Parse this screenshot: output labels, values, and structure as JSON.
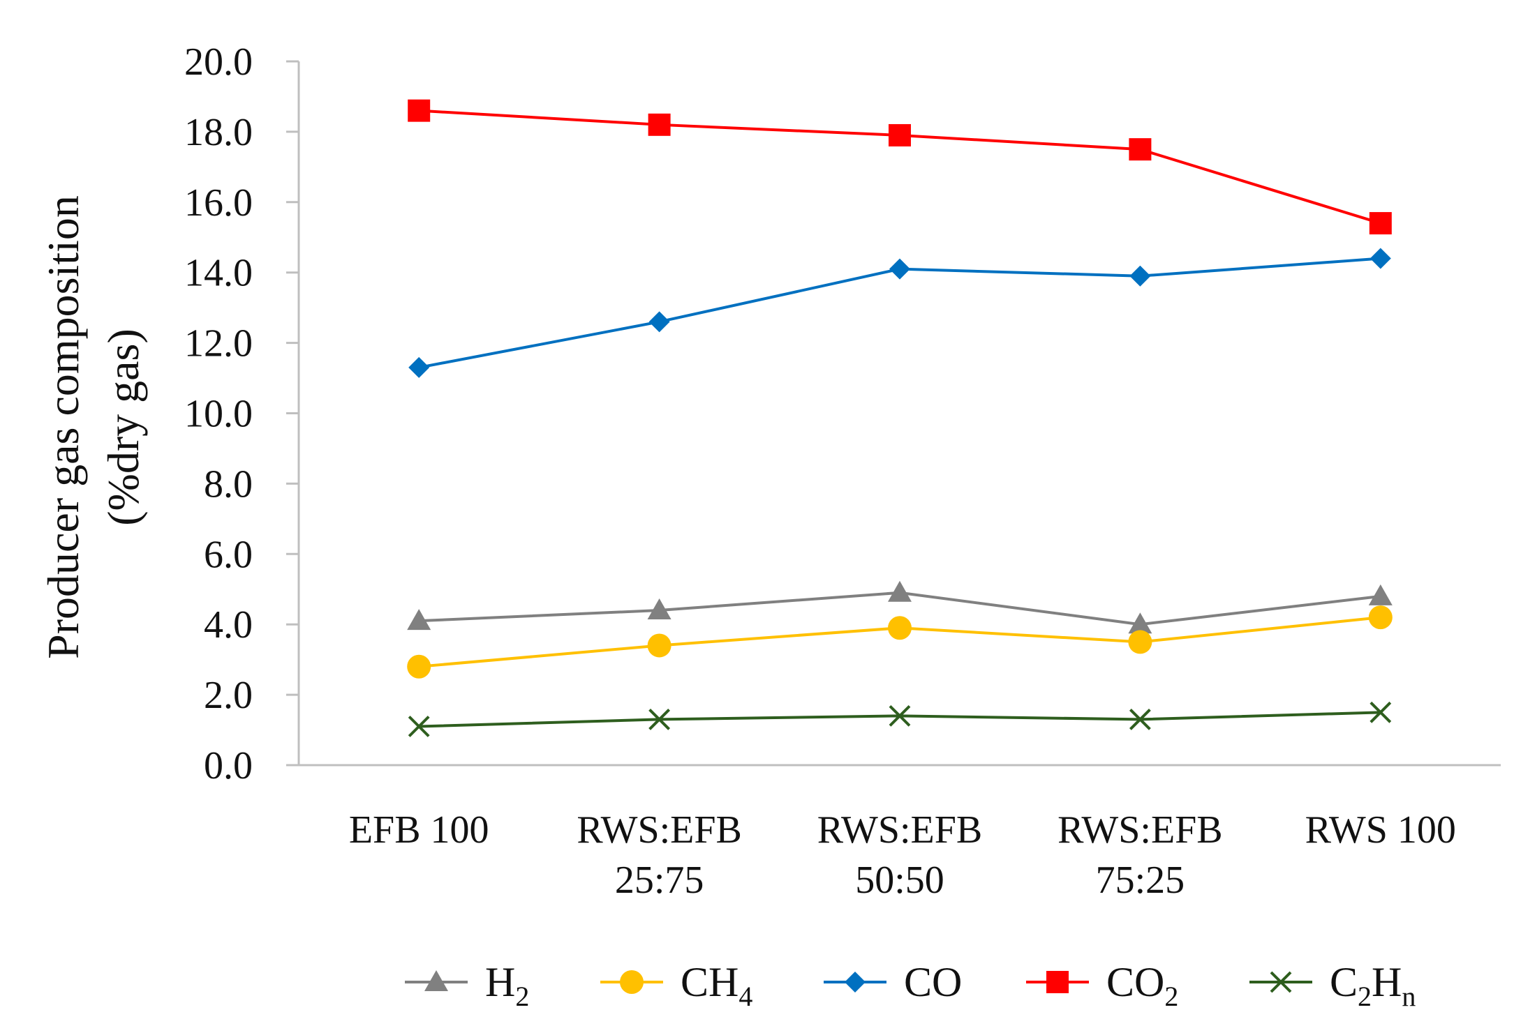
{
  "chart_data": {
    "type": "line",
    "categories": [
      [
        "EFB 100"
      ],
      [
        "RWS:EFB",
        "25:75"
      ],
      [
        "RWS:EFB",
        "50:50"
      ],
      [
        "RWS:EFB",
        "75:25"
      ],
      [
        "RWS 100"
      ]
    ],
    "ylabel": [
      "Producer gas composition",
      "(%dry gas)"
    ],
    "ylim": [
      0,
      20
    ],
    "yticks": [
      "0.0",
      "2.0",
      "4.0",
      "6.0",
      "8.0",
      "10.0",
      "12.0",
      "14.0",
      "16.0",
      "18.0",
      "20.0"
    ],
    "grid": false,
    "legend_position": "bottom",
    "series": [
      {
        "name": "H2",
        "label": "H",
        "sub": "2",
        "tail": "",
        "color": "#808080",
        "marker": "triangle",
        "values": [
          4.1,
          4.4,
          4.9,
          4.0,
          4.8
        ]
      },
      {
        "name": "CH4",
        "label": "CH",
        "sub": "4",
        "tail": "",
        "color": "#FFC000",
        "marker": "circle",
        "values": [
          2.8,
          3.4,
          3.9,
          3.5,
          4.2
        ]
      },
      {
        "name": "CO",
        "label": "CO",
        "sub": "",
        "tail": "",
        "color": "#0070C0",
        "marker": "diamond",
        "values": [
          11.3,
          12.6,
          14.1,
          13.9,
          14.4
        ]
      },
      {
        "name": "CO2",
        "label": "CO",
        "sub": "2",
        "tail": "",
        "color": "#FF0000",
        "marker": "square",
        "values": [
          18.6,
          18.2,
          17.9,
          17.5,
          15.4
        ]
      },
      {
        "name": "C2Hn",
        "label": "C",
        "sub": "2",
        "tail": "H",
        "tailsub": "n",
        "color": "#2E5E1E",
        "marker": "x",
        "values": [
          1.1,
          1.3,
          1.4,
          1.3,
          1.5
        ]
      }
    ]
  }
}
